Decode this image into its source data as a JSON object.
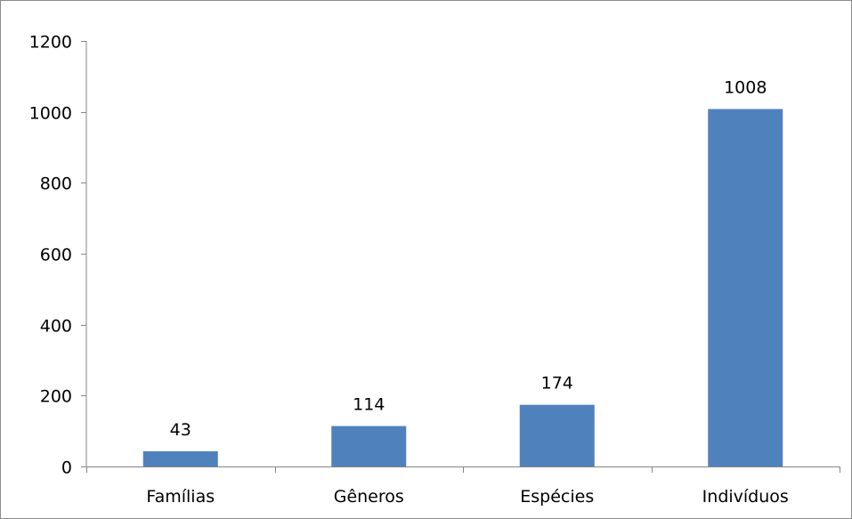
{
  "chart_data": {
    "type": "bar",
    "categories": [
      "Famílias",
      "Gêneros",
      "Espécies",
      "Indivíduos"
    ],
    "values": [
      43,
      114,
      174,
      1008
    ],
    "data_labels": [
      "43",
      "114",
      "174",
      "1008"
    ],
    "y_ticks": [
      "0",
      "200",
      "400",
      "600",
      "800",
      "1000",
      "1200"
    ],
    "ylim": [
      0,
      1200
    ],
    "grid": false,
    "legend": "none",
    "bar_color": "#4f81bd",
    "axis_color": "#868686"
  }
}
